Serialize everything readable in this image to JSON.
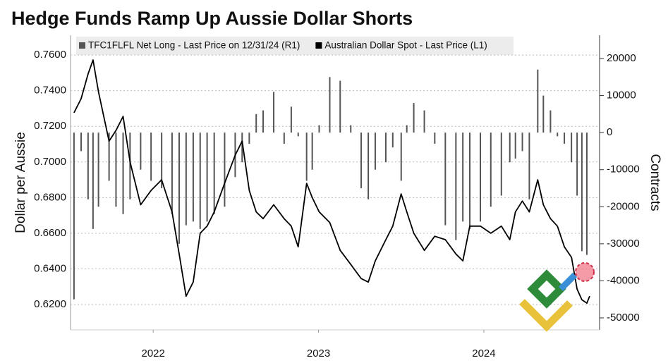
{
  "chart_data": {
    "type": "bar-line",
    "title": "Hedge Funds Ramp Up Aussie Dollar Shorts",
    "ylabel": "Dollar per Aussie",
    "y2label": "Contracts",
    "x": [
      2022.021,
      2022.064,
      2022.106,
      2022.136,
      2022.169,
      2022.233,
      2022.275,
      2022.318,
      2022.36,
      2022.424,
      2022.487,
      2022.551,
      2022.614,
      2022.657,
      2022.699,
      2022.742,
      2022.784,
      2022.826,
      2022.869,
      2022.932,
      2022.996,
      2023.038,
      2023.081,
      2023.123,
      2023.165,
      2023.229,
      2023.292,
      2023.335,
      2023.377,
      2023.428,
      2023.462,
      2023.504,
      2023.568,
      2023.631,
      2023.695,
      2023.758,
      2023.801,
      2023.843,
      2023.907,
      2023.949,
      2024.0,
      2024.034,
      2024.076,
      2024.14,
      2024.203,
      2024.267,
      2024.331,
      2024.373,
      2024.415,
      2024.479,
      2024.542,
      2024.606,
      2024.657,
      2024.691,
      2024.733,
      2024.775,
      2024.826,
      2024.86,
      2024.903,
      2024.945,
      2024.987,
      2025.03,
      2025.064,
      2025.093,
      2025.123,
      2025.14
    ],
    "xlim": [
      2022.0,
      2025.2
    ],
    "xticks": [
      {
        "value": 2022.5,
        "label": "2022"
      },
      {
        "value": 2023.5,
        "label": "2023"
      },
      {
        "value": 2024.5,
        "label": "2024"
      }
    ],
    "ylim": [
      0.6058,
      0.7711
    ],
    "yticks": [
      {
        "value": 0.62,
        "label": "0.6200"
      },
      {
        "value": 0.64,
        "label": "0.6400"
      },
      {
        "value": 0.66,
        "label": "0.6600"
      },
      {
        "value": 0.68,
        "label": "0.6800"
      },
      {
        "value": 0.7,
        "label": "0.7000"
      },
      {
        "value": 0.72,
        "label": "0.7200"
      },
      {
        "value": 0.74,
        "label": "0.7400"
      },
      {
        "value": 0.76,
        "label": "0.7600"
      }
    ],
    "y2lim": [
      -53234,
      26277
    ],
    "y2ticks": [
      -50000,
      -40000,
      -30000,
      -20000,
      -10000,
      0,
      10000,
      20000
    ],
    "grid": true,
    "series": [
      {
        "name": "TFC1FLFL Net Long - Last Price on 12/31/24 (R1)",
        "type": "bar",
        "axis": "y2",
        "color": "#555555",
        "values": [
          -45000,
          -5000,
          -18000,
          -26000,
          -20000,
          -13000,
          -20000,
          -22000,
          -18000,
          -10000,
          -13000,
          -15000,
          -22000,
          -30000,
          -25000,
          -24000,
          -26000,
          -24000,
          -22000,
          -20000,
          -12000,
          -8000,
          -3000,
          5000,
          6000,
          11000,
          -3000,
          7000,
          -1000,
          -13000,
          -10000,
          2000,
          15000,
          14000,
          2000,
          -15000,
          -18000,
          -10000,
          -8000,
          -4000,
          -13000,
          2000,
          8000,
          6000,
          -3000,
          -25000,
          -29000,
          -24000,
          -26000,
          -24000,
          -20000,
          -17000,
          -8000,
          -7000,
          -5000,
          -18000,
          17000,
          10000,
          6000,
          -1000,
          -3000,
          -8000,
          -17000,
          -32000,
          -33000,
          null
        ]
      },
      {
        "name": "Australian Dollar Spot - Last Price (L1)",
        "type": "line",
        "color": "#000000",
        "values": [
          0.7276,
          0.7355,
          0.7493,
          0.7572,
          0.7394,
          0.7117,
          0.7177,
          0.7256,
          0.7,
          0.676,
          0.684,
          0.69,
          0.672,
          0.6484,
          0.6247,
          0.6326,
          0.66,
          0.664,
          0.672,
          0.688,
          0.7038,
          0.7117,
          0.684,
          0.672,
          0.6682,
          0.676,
          0.6682,
          0.664,
          0.6524,
          0.688,
          0.68,
          0.672,
          0.666,
          0.6504,
          0.6425,
          0.6346,
          0.6326,
          0.6445,
          0.6564,
          0.664,
          0.6821,
          0.672,
          0.66,
          0.6504,
          0.6583,
          0.6564,
          0.6484,
          0.6445,
          0.664,
          0.664,
          0.66,
          0.664,
          0.6564,
          0.672,
          0.6781,
          0.672,
          0.69,
          0.676,
          0.6682,
          0.664,
          0.6524,
          0.6465,
          0.6287,
          0.6227,
          0.6208,
          0.6247
        ]
      }
    ]
  }
}
